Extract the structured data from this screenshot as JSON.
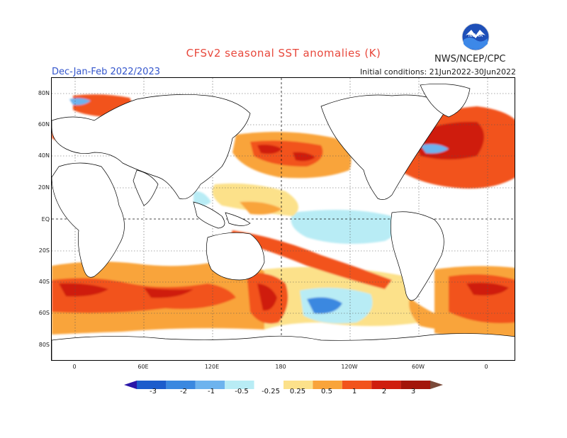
{
  "title": "CFSv2 seasonal SST anomalies (K)",
  "season": "Dec-Jan-Feb 2022/2023",
  "initial_conditions": "Initial conditions: 21Jun2022-30Jun2022",
  "agency": "NWS/NCEP/CPC",
  "logo_text": "NOAA",
  "lat_labels": [
    "80N",
    "60N",
    "40N",
    "20N",
    "EQ",
    "20S",
    "40S",
    "60S",
    "80S"
  ],
  "lon_labels": [
    "0",
    "60E",
    "120E",
    "180",
    "120W",
    "60W",
    "0"
  ],
  "colorbar": {
    "labels": [
      "-3",
      "-2",
      "-1",
      "-0.5",
      "-0.25",
      "0.25",
      "0.5",
      "1",
      "2",
      "3"
    ],
    "colors": [
      "#2a16a8",
      "#1c5ccc",
      "#3a88e0",
      "#6db3ee",
      "#b8ecf5",
      "#ffffff",
      "#fce18a",
      "#f9a43a",
      "#f2531c",
      "#cf1d0e",
      "#a3150b",
      "#7a4a3a"
    ]
  },
  "colors": {
    "strong_warm": "#cf1d0e",
    "warm": "#f2531c",
    "mild_warm": "#f9a43a",
    "slight_warm": "#fce18a",
    "slight_cool": "#b8ecf5",
    "cool": "#6db3ee",
    "strong_cool": "#1c5ccc"
  }
}
